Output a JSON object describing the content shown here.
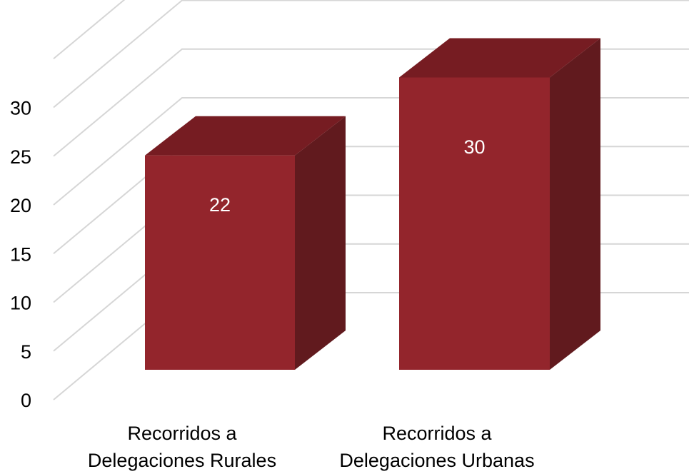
{
  "chart_data": {
    "type": "bar",
    "style": "3d-column",
    "categories": [
      [
        "Recorridos a",
        "Delegaciones Rurales"
      ],
      [
        "Recorridos a",
        "Delegaciones Urbanas"
      ]
    ],
    "values": [
      22,
      30
    ],
    "data_labels": [
      "22",
      "30"
    ],
    "y_ticks": [
      "0",
      "5",
      "10",
      "15",
      "20",
      "25",
      "30"
    ],
    "ylim": [
      0,
      35
    ],
    "grid": true,
    "legend": "none",
    "title": "",
    "xlabel": "",
    "ylabel": ""
  },
  "colors": {
    "bar_front": "#93252c",
    "bar_top": "#761c22",
    "bar_side": "#611a1e",
    "grid": "#d6d6d6",
    "text": "#000000",
    "data_label": "#ffffff"
  }
}
